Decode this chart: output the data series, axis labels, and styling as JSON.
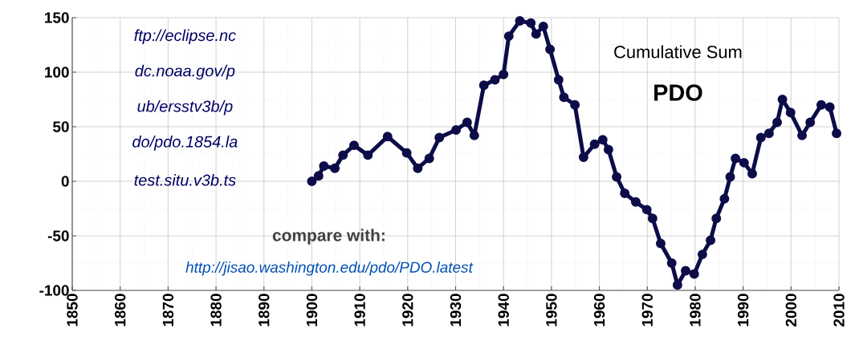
{
  "chart_data": {
    "type": "line",
    "title": "Cumulative Sum",
    "subtitle": "PDO",
    "annotations": [
      "ftp://eclipse.nc",
      "dc.noaa.gov/p",
      "ub/ersstv3b/p",
      "do/pdo.1854.la",
      "test.situ.v3b.ts",
      "compare with:",
      "http://jisao.washington.edu/pdo/PDO.latest"
    ],
    "x": [
      1900,
      1901.4,
      1902.5,
      1904.8,
      1906.5,
      1908.8,
      1911.7,
      1915.8,
      1919.8,
      1922.1,
      1924.5,
      1926.6,
      1930.1,
      1932.4,
      1933.9,
      1935.9,
      1938.2,
      1940,
      1941.1,
      1943.4,
      1945.7,
      1946.8,
      1948.3,
      1949.7,
      1951.5,
      1952.6,
      1954.9,
      1956.7,
      1959,
      1960.7,
      1961.9,
      1963.6,
      1965.3,
      1967.6,
      1969.9,
      1971.1,
      1972.8,
      1975.1,
      1976.3,
      1978,
      1979.8,
      1981.5,
      1983.2,
      1984.4,
      1986.1,
      1987.3,
      1988.4,
      1990.2,
      1991.9,
      1993.7,
      1995.4,
      1997.1,
      1998.2,
      1999.9,
      2002.3,
      2004,
      2006.3,
      2008.1,
      2009.5
    ],
    "series": [
      {
        "color": "#0c0c48",
        "values": [
          0,
          5,
          14,
          12,
          24,
          33,
          24,
          41,
          26,
          12,
          21,
          40,
          47,
          54,
          42,
          88,
          93,
          98,
          133,
          147,
          145,
          135,
          142,
          121,
          93,
          77,
          70,
          22,
          34,
          38,
          29,
          4,
          -11,
          -19,
          -26,
          -34,
          -57,
          -75,
          -95,
          -82,
          -85,
          -67,
          -54,
          -34,
          -16,
          4,
          21,
          17,
          7,
          40,
          44,
          54,
          75,
          63,
          42,
          54,
          70,
          68,
          44
        ]
      }
    ],
    "xlim": [
      1850,
      2010
    ],
    "xticks": [
      1850,
      1860,
      1870,
      1880,
      1890,
      1900,
      1910,
      1920,
      1930,
      1940,
      1950,
      1960,
      1970,
      1980,
      1990,
      2000,
      2010
    ],
    "ylim": [
      -100,
      150
    ],
    "yticks": [
      -100,
      -50,
      0,
      50,
      100,
      150
    ],
    "grid": true,
    "marker": "circle",
    "line_style": "solid"
  }
}
